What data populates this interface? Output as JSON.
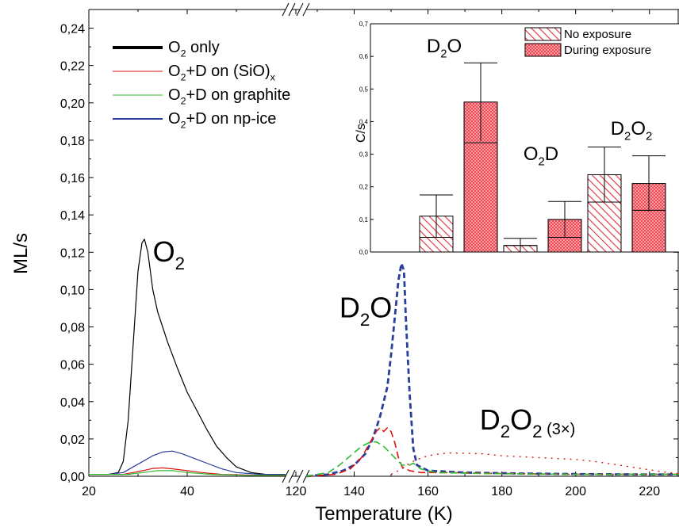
{
  "chart_data": [
    {
      "type": "line",
      "title": "",
      "xlabel": "Temperature (K)",
      "ylabel": "ML/s",
      "ylim": [
        0,
        0.25
      ],
      "x_segments": [
        {
          "range": [
            20,
            60
          ],
          "ticks": [
            "20",
            "40"
          ]
        },
        {
          "range": [
            118,
            122
          ],
          "ticks": [
            "120"
          ]
        },
        {
          "range": [
            127,
            228
          ],
          "ticks": [
            "140",
            "160",
            "180",
            "200",
            "220"
          ]
        }
      ],
      "y_ticks": [
        "0,00",
        "0,02",
        "0,04",
        "0,06",
        "0,08",
        "0,10",
        "0,12",
        "0,14",
        "0,16",
        "0,18",
        "0,20",
        "0,22",
        "0,24"
      ],
      "y_tick_values": [
        0,
        0.02,
        0.04,
        0.06,
        0.08,
        0.1,
        0.12,
        0.14,
        0.16,
        0.18,
        0.2,
        0.22,
        0.24
      ],
      "legend_position": "top-left",
      "legend": [
        {
          "base": "O",
          "sub": "2",
          "rest": " only",
          "rest_sub": "",
          "color": "#000000",
          "width": 4
        },
        {
          "base": "O",
          "sub": "2",
          "rest": "+D on (SiO)",
          "rest_sub": "x",
          "color": "#dd1111",
          "width": 1
        },
        {
          "base": "O",
          "sub": "2",
          "rest": "+D on graphite",
          "rest_sub": "",
          "color": "#33bb33",
          "width": 1
        },
        {
          "base": "O",
          "sub": "2",
          "rest": "+D on np-ice",
          "rest_sub": "",
          "color": "#2a3f9a",
          "width": 2
        }
      ],
      "annotations": [
        {
          "base": "O",
          "sub": "2",
          "tail": "",
          "x": 33,
          "y": 0.115
        },
        {
          "base": "D",
          "sub": "2",
          "tail": "O",
          "x": 136,
          "y": 0.085
        },
        {
          "base": "D",
          "sub": "2",
          "tail": "O",
          "sub2": "2",
          "extra": "(3×)",
          "x": 174,
          "y": 0.025
        }
      ],
      "series": [
        {
          "color": "#000000",
          "dash": "",
          "width": 1.2,
          "points": [
            [
              20,
              0.001
            ],
            [
              22,
              0.001
            ],
            [
              24,
              0.001
            ],
            [
              26,
              0.002
            ],
            [
              27,
              0.008
            ],
            [
              28,
              0.03
            ],
            [
              29,
              0.07
            ],
            [
              30,
              0.11
            ],
            [
              30.8,
              0.125
            ],
            [
              31.3,
              0.127
            ],
            [
              32,
              0.12
            ],
            [
              33,
              0.1
            ],
            [
              34,
              0.088
            ],
            [
              35,
              0.08
            ],
            [
              36,
              0.072
            ],
            [
              37,
              0.065
            ],
            [
              38,
              0.058
            ],
            [
              40,
              0.045
            ],
            [
              42,
              0.035
            ],
            [
              44,
              0.025
            ],
            [
              46,
              0.016
            ],
            [
              48,
              0.01
            ],
            [
              50,
              0.005
            ],
            [
              53,
              0.002
            ],
            [
              56,
              0.001
            ],
            [
              60,
              0.001
            ]
          ]
        },
        {
          "color": "#2a3f9a",
          "dash": "",
          "width": 1.2,
          "points": [
            [
              20,
              0.001
            ],
            [
              24,
              0.001
            ],
            [
              27,
              0.002
            ],
            [
              29,
              0.005
            ],
            [
              31,
              0.008
            ],
            [
              33,
              0.011
            ],
            [
              35,
              0.013
            ],
            [
              37,
              0.0135
            ],
            [
              39,
              0.012
            ],
            [
              41,
              0.01
            ],
            [
              44,
              0.007
            ],
            [
              47,
              0.004
            ],
            [
              50,
              0.002
            ],
            [
              55,
              0.001
            ],
            [
              60,
              0.001
            ]
          ]
        },
        {
          "color": "#dd1111",
          "dash": "",
          "width": 1.2,
          "points": [
            [
              20,
              0.001
            ],
            [
              27,
              0.001
            ],
            [
              29,
              0.002
            ],
            [
              31,
              0.003
            ],
            [
              33,
              0.0042
            ],
            [
              35,
              0.0045
            ],
            [
              37,
              0.004
            ],
            [
              40,
              0.003
            ],
            [
              43,
              0.002
            ],
            [
              47,
              0.001
            ],
            [
              55,
              0.0005
            ],
            [
              60,
              0.0005
            ]
          ]
        },
        {
          "color": "#33bb33",
          "dash": "",
          "width": 1.2,
          "points": [
            [
              20,
              0.001
            ],
            [
              28,
              0.001
            ],
            [
              31,
              0.002
            ],
            [
              34,
              0.003
            ],
            [
              37,
              0.003
            ],
            [
              40,
              0.002
            ],
            [
              45,
              0.001
            ],
            [
              52,
              0.0005
            ],
            [
              60,
              0.0005
            ]
          ]
        },
        {
          "color": "#2a3f9a",
          "dash": "7 4",
          "width": 2.8,
          "points": [
            [
              127,
              0
            ],
            [
              133,
              0.001
            ],
            [
              137,
              0.003
            ],
            [
              140,
              0.006
            ],
            [
              143,
              0.012
            ],
            [
              145,
              0.02
            ],
            [
              147,
              0.032
            ],
            [
              149,
              0.048
            ],
            [
              150,
              0.065
            ],
            [
              151,
              0.085
            ],
            [
              152,
              0.105
            ],
            [
              152.8,
              0.114
            ],
            [
              153.5,
              0.11
            ],
            [
              154,
              0.085
            ],
            [
              155,
              0.045
            ],
            [
              156,
              0.015
            ],
            [
              157,
              0.006
            ],
            [
              160,
              0.003
            ],
            [
              170,
              0.002
            ],
            [
              185,
              0.0015
            ],
            [
              200,
              0.0012
            ],
            [
              215,
              0.001
            ],
            [
              228,
              0.001
            ]
          ]
        },
        {
          "color": "#dd1111",
          "dash": "9 5",
          "width": 1.6,
          "points": [
            [
              127,
              0
            ],
            [
              135,
              0.001
            ],
            [
              139,
              0.004
            ],
            [
              142,
              0.01
            ],
            [
              144,
              0.017
            ],
            [
              146,
              0.024
            ],
            [
              147,
              0.026
            ],
            [
              148,
              0.024
            ],
            [
              149,
              0.026
            ],
            [
              150,
              0.024
            ],
            [
              151,
              0.018
            ],
            [
              152,
              0.01
            ],
            [
              153,
              0.005
            ],
            [
              155,
              0.003
            ],
            [
              158,
              0.002
            ],
            [
              165,
              0.002
            ],
            [
              180,
              0.0015
            ],
            [
              200,
              0.001
            ],
            [
              228,
              0.001
            ]
          ]
        },
        {
          "color": "#33bb33",
          "dash": "9 5",
          "width": 1.6,
          "points": [
            [
              127,
              0
            ],
            [
              133,
              0.002
            ],
            [
              136,
              0.006
            ],
            [
              139,
              0.011
            ],
            [
              142,
              0.016
            ],
            [
              144,
              0.018
            ],
            [
              146,
              0.0185
            ],
            [
              148,
              0.016
            ],
            [
              150,
              0.012
            ],
            [
              152,
              0.008
            ],
            [
              153,
              0.006
            ],
            [
              155,
              0.006
            ],
            [
              156,
              0.007
            ],
            [
              158,
              0.004
            ],
            [
              162,
              0.002
            ],
            [
              175,
              0.0015
            ],
            [
              200,
              0.001
            ],
            [
              228,
              0.001
            ]
          ]
        },
        {
          "color": "#dd1111",
          "dash": "2 6",
          "width": 1.4,
          "points": [
            [
              150,
              0.001
            ],
            [
              153,
              0.004
            ],
            [
              155,
              0.007
            ],
            [
              157,
              0.009
            ],
            [
              160,
              0.011
            ],
            [
              163,
              0.012
            ],
            [
              166,
              0.0125
            ],
            [
              170,
              0.0123
            ],
            [
              175,
              0.012
            ],
            [
              180,
              0.011
            ],
            [
              185,
              0.0105
            ],
            [
              190,
              0.01
            ],
            [
              195,
              0.0095
            ],
            [
              200,
              0.009
            ],
            [
              205,
              0.008
            ],
            [
              210,
              0.0065
            ],
            [
              215,
              0.005
            ],
            [
              220,
              0.0035
            ],
            [
              225,
              0.002
            ],
            [
              228,
              0.0015
            ]
          ]
        }
      ]
    },
    {
      "type": "bar",
      "title": "",
      "xlabel": "",
      "ylabel": "C/s",
      "ylim": [
        0,
        0.7
      ],
      "y_ticks": [
        "0,0",
        "0,1",
        "0,2",
        "0,3",
        "0,4",
        "0,5",
        "0,6",
        "0,7"
      ],
      "y_tick_values": [
        0,
        0.1,
        0.2,
        0.3,
        0.4,
        0.5,
        0.6,
        0.7
      ],
      "legend_position": "top-right",
      "legend": [
        {
          "name": "No exposure",
          "pattern": "hatch"
        },
        {
          "name": "During exposure",
          "pattern": "dots"
        }
      ],
      "groups": [
        {
          "base": "D",
          "sub": "2",
          "tail": "O",
          "sub2": "",
          "bars": [
            {
              "series": "No exposure",
              "value": 0.11,
              "error": 0.065,
              "median": 0.045
            },
            {
              "series": "During exposure",
              "value": 0.46,
              "error": 0.12,
              "median": 0.335
            }
          ]
        },
        {
          "base": "O",
          "sub": "2",
          "tail": "D",
          "sub2": "",
          "bars": [
            {
              "series": "No exposure",
              "value": 0.02,
              "error": 0.022,
              "median": 0.02
            },
            {
              "series": "During exposure",
              "value": 0.1,
              "error": 0.055,
              "median": 0.045
            }
          ]
        },
        {
          "base": "D",
          "sub": "2",
          "tail": "O",
          "sub2": "2",
          "bars": [
            {
              "series": "No exposure",
              "value": 0.237,
              "error": 0.085,
              "median": 0.153
            },
            {
              "series": "During exposure",
              "value": 0.21,
              "error": 0.085,
              "median": 0.128
            }
          ]
        }
      ]
    }
  ]
}
